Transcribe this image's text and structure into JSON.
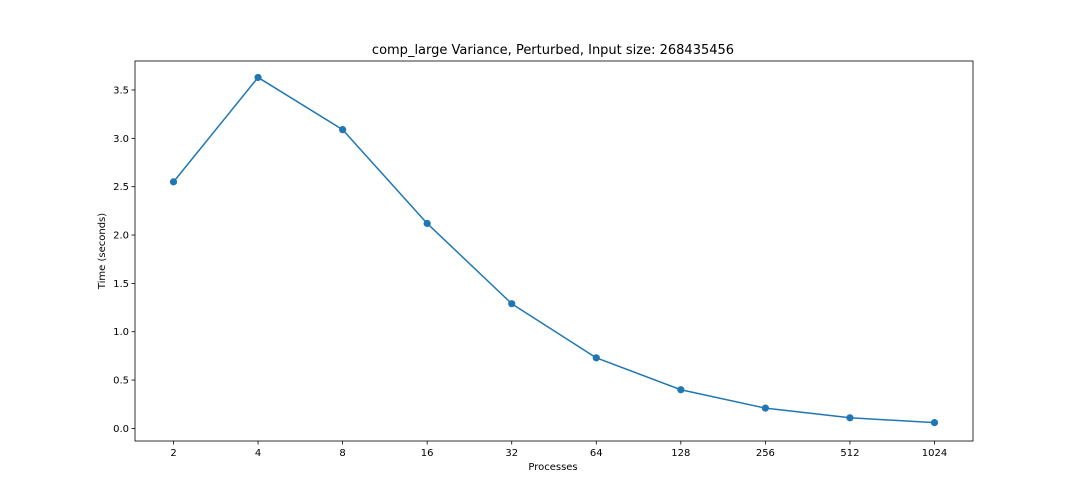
{
  "chart_data": {
    "type": "line",
    "title": "comp_large Variance, Perturbed, Input size: 268435456",
    "xlabel": "Processes",
    "ylabel": "Time (seconds)",
    "categories": [
      "2",
      "4",
      "8",
      "16",
      "32",
      "64",
      "128",
      "256",
      "512",
      "1024"
    ],
    "series": [
      {
        "values": [
          2.55,
          3.63,
          3.09,
          2.12,
          1.29,
          0.73,
          0.4,
          0.21,
          0.11,
          0.06
        ]
      }
    ],
    "yticks": [
      0.0,
      0.5,
      1.0,
      1.5,
      2.0,
      2.5,
      3.0,
      3.5
    ],
    "ytick_labels": [
      "0.0",
      "0.5",
      "1.0",
      "1.5",
      "2.0",
      "2.5",
      "3.0",
      "3.5"
    ],
    "ylim": [
      -0.13,
      3.8
    ],
    "grid": false,
    "marker": "circle",
    "color": "#1f77b4"
  }
}
